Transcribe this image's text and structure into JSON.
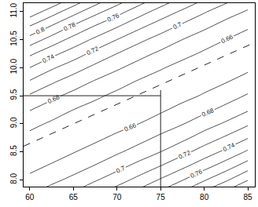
{
  "chart_data": {
    "type": "contour",
    "x": [
      60,
      62.5,
      65,
      67.5,
      70,
      72.5,
      75,
      77.5,
      80,
      82.5,
      85
    ],
    "y": [
      7.75,
      8.0,
      8.25,
      8.5,
      8.75,
      9.0,
      9.25,
      9.5,
      9.75,
      10.0,
      10.25,
      10.5,
      10.75,
      11.0,
      11.25
    ],
    "z": [
      [
        0.679,
        0.69,
        0.703,
        0.717,
        0.732,
        0.748,
        0.766,
        0.785,
        0.806,
        0.827,
        0.85
      ],
      [
        0.665,
        0.675,
        0.685,
        0.698,
        0.711,
        0.726,
        0.742,
        0.759,
        0.778,
        0.797,
        0.819
      ],
      [
        0.654,
        0.662,
        0.671,
        0.681,
        0.693,
        0.706,
        0.72,
        0.735,
        0.752,
        0.77,
        0.79
      ],
      [
        0.65,
        0.651,
        0.659,
        0.667,
        0.677,
        0.688,
        0.7,
        0.714,
        0.729,
        0.745,
        0.763
      ],
      [
        0.654,
        0.65,
        0.65,
        0.656,
        0.664,
        0.673,
        0.684,
        0.695,
        0.709,
        0.723,
        0.739
      ],
      [
        0.666,
        0.657,
        0.65,
        0.65,
        0.653,
        0.66,
        0.669,
        0.679,
        0.691,
        0.703,
        0.717
      ],
      [
        0.681,
        0.67,
        0.66,
        0.652,
        0.65,
        0.65,
        0.657,
        0.666,
        0.675,
        0.686,
        0.698
      ],
      [
        0.698,
        0.685,
        0.674,
        0.664,
        0.655,
        0.65,
        0.65,
        0.654,
        0.662,
        0.671,
        0.682
      ],
      [
        0.718,
        0.703,
        0.69,
        0.678,
        0.668,
        0.658,
        0.65,
        0.65,
        0.652,
        0.659,
        0.668
      ],
      [
        0.74,
        0.723,
        0.709,
        0.695,
        0.683,
        0.672,
        0.662,
        0.653,
        0.65,
        0.65,
        0.656
      ],
      [
        0.764,
        0.746,
        0.73,
        0.714,
        0.7,
        0.687,
        0.676,
        0.666,
        0.657,
        0.65,
        0.65
      ],
      [
        0.792,
        0.772,
        0.753,
        0.736,
        0.72,
        0.705,
        0.692,
        0.68,
        0.669,
        0.66,
        0.652
      ],
      [
        0.821,
        0.8,
        0.779,
        0.76,
        0.743,
        0.726,
        0.711,
        0.697,
        0.685,
        0.673,
        0.663
      ],
      [
        0.853,
        0.83,
        0.808,
        0.787,
        0.768,
        0.749,
        0.732,
        0.717,
        0.702,
        0.689,
        0.678
      ],
      [
        0.888,
        0.863,
        0.839,
        0.816,
        0.795,
        0.775,
        0.756,
        0.739,
        0.723,
        0.708,
        0.694
      ]
    ],
    "levels": [
      0.66,
      0.68,
      0.7,
      0.72,
      0.74,
      0.76,
      0.78,
      0.8,
      0.82,
      0.84
    ],
    "color": "#222222",
    "lines": [
      {
        "x": [
          59.3,
          75
        ],
        "y": [
          9.5,
          9.5
        ],
        "line_style": "solid"
      },
      {
        "x": [
          75,
          75
        ],
        "y": [
          7.88,
          9.6
        ],
        "line_style": "solid"
      },
      {
        "x": [
          59.3,
          85.8
        ],
        "y": [
          8.6,
          10.45
        ],
        "line_style": "dashed"
      }
    ],
    "xlim": [
      59.3,
      85.8
    ],
    "xticks": [
      60,
      65,
      70,
      75,
      80,
      85
    ],
    "ylim": [
      7.88,
      11.15
    ],
    "yticks": [
      {
        "value": 8,
        "label": "8.0"
      },
      8.5,
      {
        "value": 9,
        "label": "9.0"
      },
      9.5,
      {
        "value": 10,
        "label": "10.0"
      },
      10.5,
      {
        "value": 11,
        "label": "11.0"
      }
    ],
    "grid": false
  }
}
